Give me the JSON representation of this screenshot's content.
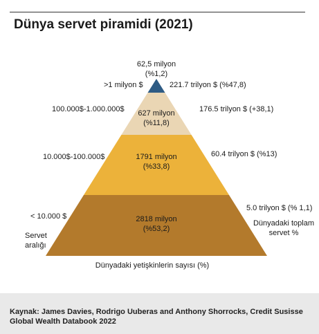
{
  "title": "Dünya servet piramidi (2021)",
  "chart_data": {
    "type": "pyramid",
    "tiers": [
      {
        "wealth_range": ">1 milyon $",
        "adults_millions": 62.5,
        "adults_label": "62,5 milyon",
        "adults_share_label": "(%1,2)",
        "adults_share": 1.2,
        "total_wealth_label": "221.7 trilyon $ (%47,8)",
        "total_wealth_trillion": 221.7,
        "total_wealth_share": 47.8,
        "color": "#2e5b84"
      },
      {
        "wealth_range": "100.000$-1.000.000$",
        "adults_millions": 627,
        "adults_label": "627 milyon",
        "adults_share_label": "(%11,8)",
        "adults_share": 11.8,
        "total_wealth_label": "176.5 trilyon $ (+38,1)",
        "total_wealth_trillion": 176.5,
        "total_wealth_share": 38.1,
        "color": "#ead6b4"
      },
      {
        "wealth_range": "10.000$-100.000$",
        "adults_millions": 1791,
        "adults_label": "1791 milyon",
        "adults_share_label": "(%33,8)",
        "adults_share": 33.8,
        "total_wealth_label": "60.4 trilyon $ (%13)",
        "total_wealth_trillion": 60.4,
        "total_wealth_share": 13,
        "color": "#ecb23a"
      },
      {
        "wealth_range": "< 10.000 $",
        "adults_millions": 2818,
        "adults_label": "2818 milyon",
        "adults_share_label": "(%53,2)",
        "adults_share": 53.2,
        "total_wealth_label": "5.0 trilyon $ (% 1,1)",
        "total_wealth_trillion": 5.0,
        "total_wealth_share": 1.1,
        "color": "#b37a2c"
      }
    ],
    "left_axis_label": "Servet aralığı",
    "right_axis_label": "Dünyadaki toplam servet %",
    "bottom_axis_label": "Dünyadaki yetişkinlerin sayısı (%)"
  },
  "source": {
    "line1": "Kaynak: James Davies, Rodrigo Uuberas and Anthony Shorrocks, Credit Susisse",
    "line2": "Global Wealth Databook 2022"
  }
}
